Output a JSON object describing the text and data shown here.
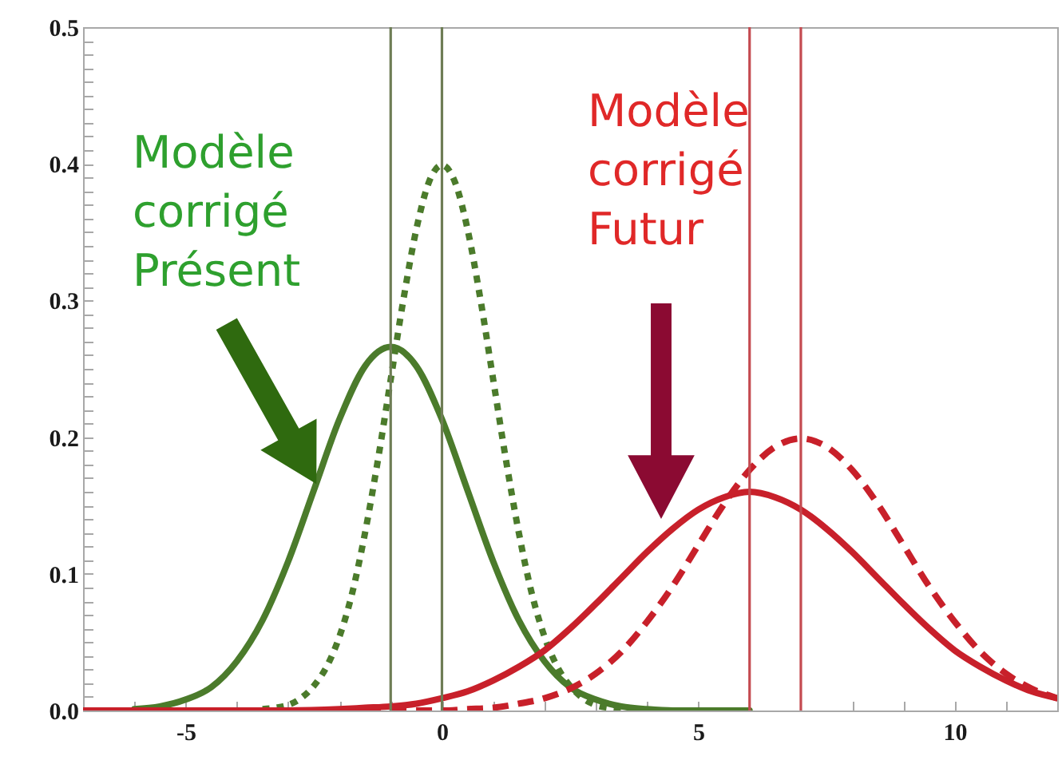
{
  "chart_data": {
    "type": "line",
    "xlim": [
      -7,
      12
    ],
    "ylim": [
      0,
      0.5
    ],
    "xticks": [
      {
        "value": -6,
        "label": null
      },
      -5,
      {
        "value": -4,
        "label": null
      },
      {
        "value": -3,
        "label": null
      },
      {
        "value": -2,
        "label": null
      },
      {
        "value": -1,
        "label": null
      },
      0,
      {
        "value": 1,
        "label": null
      },
      {
        "value": 2,
        "label": null
      },
      {
        "value": 3,
        "label": null
      },
      {
        "value": 4,
        "label": null
      },
      5,
      {
        "value": 6,
        "label": null
      },
      {
        "value": 7,
        "label": null
      },
      {
        "value": 8,
        "label": null
      },
      {
        "value": 9,
        "label": null
      },
      10,
      {
        "value": 11,
        "label": null
      }
    ],
    "yticks": [
      {
        "value": 0,
        "label": "0.0"
      },
      {
        "value": 0.01,
        "label": null
      },
      {
        "value": 0.02,
        "label": null
      },
      {
        "value": 0.03,
        "label": null
      },
      {
        "value": 0.04,
        "label": null
      },
      {
        "value": 0.05,
        "label": null
      },
      {
        "value": 0.06,
        "label": null
      },
      {
        "value": 0.07,
        "label": null
      },
      {
        "value": 0.08,
        "label": null
      },
      {
        "value": 0.09,
        "label": null
      },
      0.1,
      {
        "value": 0.11,
        "label": null
      },
      {
        "value": 0.12,
        "label": null
      },
      {
        "value": 0.13,
        "label": null
      },
      {
        "value": 0.14,
        "label": null
      },
      {
        "value": 0.15,
        "label": null
      },
      {
        "value": 0.16,
        "label": null
      },
      {
        "value": 0.17,
        "label": null
      },
      {
        "value": 0.18,
        "label": null
      },
      {
        "value": 0.19,
        "label": null
      },
      0.2,
      {
        "value": 0.21,
        "label": null
      },
      {
        "value": 0.22,
        "label": null
      },
      {
        "value": 0.23,
        "label": null
      },
      {
        "value": 0.24,
        "label": null
      },
      {
        "value": 0.25,
        "label": null
      },
      {
        "value": 0.26,
        "label": null
      },
      {
        "value": 0.27,
        "label": null
      },
      {
        "value": 0.28,
        "label": null
      },
      {
        "value": 0.29,
        "label": null
      },
      0.3,
      {
        "value": 0.31,
        "label": null
      },
      {
        "value": 0.32,
        "label": null
      },
      {
        "value": 0.33,
        "label": null
      },
      {
        "value": 0.34,
        "label": null
      },
      {
        "value": 0.35,
        "label": null
      },
      {
        "value": 0.36,
        "label": null
      },
      {
        "value": 0.37,
        "label": null
      },
      {
        "value": 0.38,
        "label": null
      },
      {
        "value": 0.39,
        "label": null
      },
      0.4,
      {
        "value": 0.41,
        "label": null
      },
      {
        "value": 0.42,
        "label": null
      },
      {
        "value": 0.43,
        "label": null
      },
      {
        "value": 0.44,
        "label": null
      },
      {
        "value": 0.45,
        "label": null
      },
      {
        "value": 0.46,
        "label": null
      },
      {
        "value": 0.47,
        "label": null
      },
      {
        "value": 0.48,
        "label": null
      },
      {
        "value": 0.49,
        "label": null
      },
      0.5
    ],
    "annotations": [
      "Modèle corrigé Présent",
      "Modèle corrigé Futur"
    ],
    "ref_lines": [
      {
        "axis": "x",
        "value": -1,
        "color": "#6e7d55"
      },
      {
        "axis": "x",
        "value": 0,
        "color": "#6e7d55"
      },
      {
        "axis": "x",
        "value": 6,
        "color": "#c44a50"
      },
      {
        "axis": "x",
        "value": 7,
        "color": "#c44a50"
      }
    ],
    "series": [
      {
        "color": "#4b7b2b",
        "line_style": "solid",
        "x": [
          -6,
          -5.5,
          -5,
          -4.5,
          -4,
          -3.5,
          -3,
          -2.5,
          -2,
          -1.5,
          -1,
          -0.5,
          0,
          0.5,
          1,
          1.5,
          2,
          2.5,
          3,
          3.5,
          4,
          4.5,
          5,
          5.5,
          6
        ],
        "values": [
          0.001,
          0.003,
          0.008,
          0.017,
          0.036,
          0.066,
          0.109,
          0.161,
          0.213,
          0.252,
          0.266,
          0.252,
          0.213,
          0.161,
          0.109,
          0.066,
          0.036,
          0.017,
          0.008,
          0.003,
          0.001,
          0,
          0,
          0,
          0
        ]
      },
      {
        "color": "#4b7b2b",
        "line_style": "dotted",
        "x": [
          -3.5,
          -3.25,
          -3,
          -2.75,
          -2.5,
          -2.25,
          -2,
          -1.75,
          -1.5,
          -1.25,
          -1,
          -0.75,
          -0.5,
          -0.25,
          0,
          0.25,
          0.5,
          0.75,
          1,
          1.25,
          1.5,
          1.75,
          2,
          2.25,
          2.5,
          2.75,
          3,
          3.25,
          3.5
        ],
        "values": [
          0.001,
          0.002,
          0.004,
          0.009,
          0.018,
          0.032,
          0.054,
          0.086,
          0.13,
          0.183,
          0.242,
          0.301,
          0.352,
          0.387,
          0.399,
          0.387,
          0.352,
          0.301,
          0.242,
          0.183,
          0.13,
          0.086,
          0.054,
          0.032,
          0.018,
          0.009,
          0.004,
          0.002,
          0.001
        ]
      },
      {
        "color": "#c8202a",
        "line_style": "solid",
        "x": [
          -7,
          -6,
          -5,
          -4,
          -3,
          -2,
          -1.5,
          -1,
          -0.5,
          0,
          0.5,
          1,
          1.5,
          2,
          2.5,
          3,
          3.5,
          4,
          4.5,
          5,
          5.5,
          6,
          6.5,
          7,
          7.5,
          8,
          8.5,
          9,
          9.5,
          10,
          10.5,
          11,
          11.5,
          12
        ],
        "values": [
          0,
          0,
          0,
          0,
          0,
          0.001,
          0.002,
          0.003,
          0.005,
          0.009,
          0.014,
          0.022,
          0.032,
          0.044,
          0.06,
          0.078,
          0.097,
          0.116,
          0.133,
          0.147,
          0.156,
          0.16,
          0.156,
          0.147,
          0.133,
          0.116,
          0.097,
          0.078,
          0.06,
          0.044,
          0.032,
          0.022,
          0.014,
          0.009
        ]
      },
      {
        "color": "#c8202a",
        "line_style": "dashed",
        "x": [
          -2,
          -1,
          0,
          0.5,
          1,
          1.5,
          2,
          2.5,
          3,
          3.5,
          4,
          4.5,
          5,
          5.5,
          6,
          6.5,
          7,
          7.5,
          8,
          8.5,
          9,
          9.5,
          10,
          10.5,
          11,
          11.5,
          12
        ],
        "values": [
          0,
          0,
          0,
          0.001,
          0.002,
          0.005,
          0.009,
          0.016,
          0.027,
          0.043,
          0.065,
          0.091,
          0.121,
          0.151,
          0.176,
          0.193,
          0.199,
          0.193,
          0.176,
          0.151,
          0.121,
          0.091,
          0.065,
          0.043,
          0.027,
          0.016,
          0.009
        ]
      }
    ]
  }
}
